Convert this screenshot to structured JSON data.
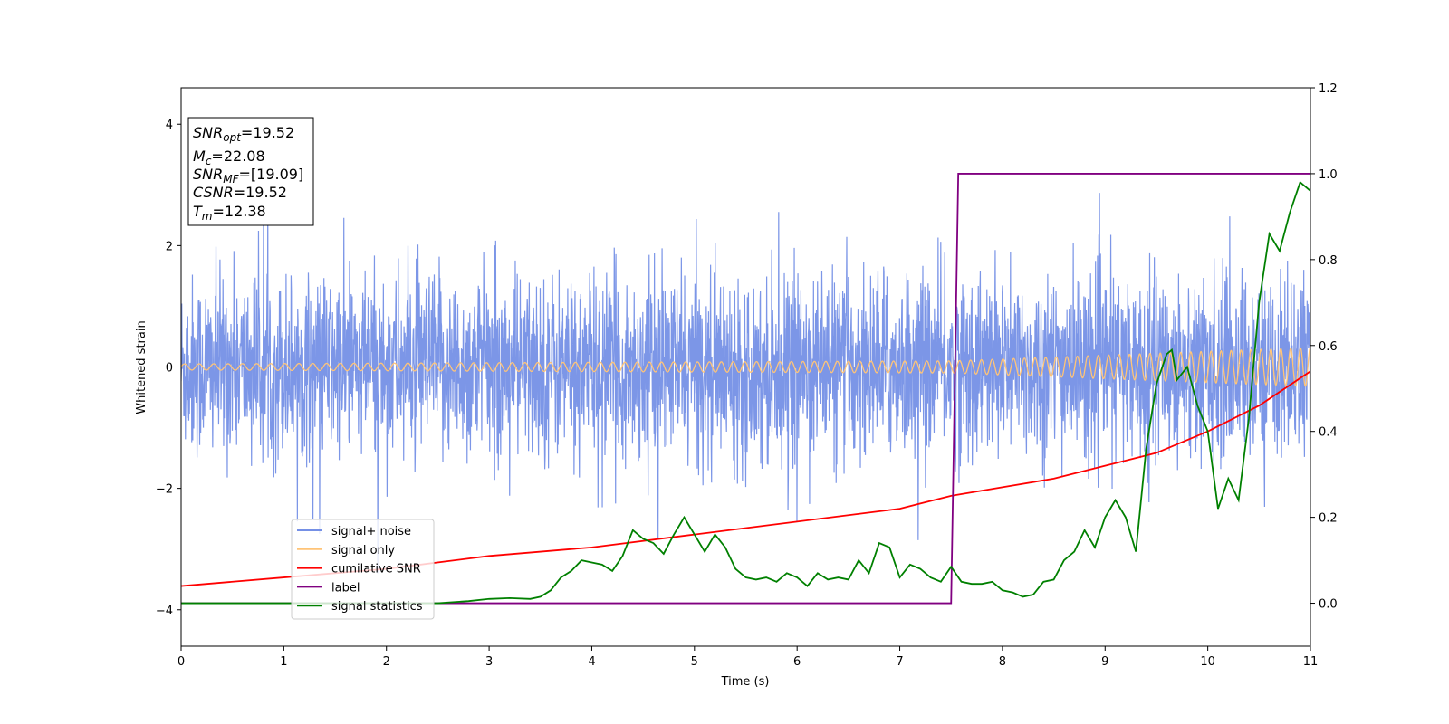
{
  "chart_data": {
    "type": "line",
    "xlabel": "Time (s)",
    "ylabel": "Whitened strain",
    "xlim": [
      0,
      11
    ],
    "ylim_left": [
      -4.6,
      4.6
    ],
    "ylim_right": [
      -0.1,
      1.2
    ],
    "x_ticks": [
      "0",
      "1",
      "2",
      "3",
      "4",
      "5",
      "6",
      "7",
      "8",
      "9",
      "10",
      "11"
    ],
    "y_left_ticks": [
      "4",
      "2",
      "0",
      "−2",
      "−4"
    ],
    "y_right_ticks": [
      "1.2",
      "1.0",
      "0.8",
      "0.6",
      "0.4",
      "0.2",
      "0.0"
    ],
    "y_left_tick_values": [
      4,
      2,
      0,
      -2,
      -4
    ],
    "y_right_tick_values": [
      1.2,
      1.0,
      0.8,
      0.6,
      0.4,
      0.2,
      0.0
    ],
    "annotation": {
      "lines": [
        {
          "sym": "SNR",
          "sub": "opt",
          "value": "=19.52"
        },
        {
          "sym": "M",
          "sub": "c",
          "value": "=22.08"
        },
        {
          "sym": "SNR",
          "sub": "MF",
          "value": "=[19.09]"
        },
        {
          "sym": "CSNR",
          "sub": "",
          "value": "=19.52"
        },
        {
          "sym": "T",
          "sub": "m",
          "value": "=12.38"
        }
      ]
    },
    "legend": {
      "position": "lower-left",
      "entries": [
        {
          "label": "signal+ noise",
          "color": "#7590e6"
        },
        {
          "label": "signal only",
          "color": "#ffc477"
        },
        {
          "label": "cumilative SNR",
          "color": "#ff0000"
        },
        {
          "label": "label",
          "color": "#800080"
        },
        {
          "label": "signal statistics",
          "color": "#008000"
        }
      ]
    },
    "series": [
      {
        "name": "signal+ noise",
        "axis": "left",
        "color": "#7590e6",
        "style": "noise band",
        "envelope_typical": 1.5,
        "envelope_extreme": [
          -4.1,
          3.3
        ]
      },
      {
        "name": "signal only",
        "axis": "left",
        "color": "#ffc477",
        "style": "chirp",
        "amplitude": [
          [
            0,
            0.05
          ],
          [
            7.5,
            0.1
          ],
          [
            11,
            0.32
          ]
        ]
      },
      {
        "name": "cumilative SNR",
        "axis": "right",
        "color": "#ff0000",
        "x": [
          0,
          1,
          2,
          3,
          4,
          5,
          6,
          7,
          7.5,
          8,
          8.5,
          9,
          9.5,
          10,
          10.5,
          11
        ],
        "y": [
          0.04,
          0.06,
          0.08,
          0.11,
          0.13,
          0.16,
          0.19,
          0.22,
          0.25,
          0.27,
          0.29,
          0.32,
          0.35,
          0.4,
          0.46,
          0.54
        ]
      },
      {
        "name": "label",
        "axis": "right",
        "color": "#800080",
        "x": [
          0,
          7.5,
          7.57,
          11
        ],
        "y": [
          0,
          0,
          1,
          1
        ]
      },
      {
        "name": "signal statistics",
        "axis": "right",
        "color": "#008000",
        "x": [
          0,
          0.5,
          1,
          1.5,
          2,
          2.5,
          2.8,
          3,
          3.2,
          3.4,
          3.5,
          3.6,
          3.7,
          3.8,
          3.9,
          4,
          4.1,
          4.2,
          4.3,
          4.4,
          4.5,
          4.6,
          4.7,
          4.8,
          4.9,
          5,
          5.1,
          5.2,
          5.3,
          5.4,
          5.5,
          5.6,
          5.7,
          5.8,
          5.9,
          6,
          6.1,
          6.2,
          6.3,
          6.4,
          6.5,
          6.6,
          6.7,
          6.8,
          6.9,
          7,
          7.1,
          7.2,
          7.3,
          7.4,
          7.5,
          7.6,
          7.7,
          7.8,
          7.9,
          8,
          8.1,
          8.2,
          8.3,
          8.4,
          8.5,
          8.6,
          8.7,
          8.8,
          8.9,
          9,
          9.1,
          9.2,
          9.3,
          9.4,
          9.5,
          9.6,
          9.65,
          9.7,
          9.8,
          9.9,
          10,
          10.1,
          10.2,
          10.3,
          10.4,
          10.5,
          10.6,
          10.7,
          10.8,
          10.9,
          11
        ],
        "y": [
          0.0,
          0.0,
          0.0,
          0.0,
          0.0,
          0.0,
          0.005,
          0.01,
          0.012,
          0.01,
          0.015,
          0.03,
          0.06,
          0.075,
          0.1,
          0.095,
          0.09,
          0.075,
          0.11,
          0.17,
          0.15,
          0.14,
          0.115,
          0.16,
          0.2,
          0.16,
          0.12,
          0.16,
          0.13,
          0.08,
          0.06,
          0.055,
          0.06,
          0.05,
          0.07,
          0.06,
          0.04,
          0.07,
          0.055,
          0.06,
          0.055,
          0.1,
          0.07,
          0.14,
          0.13,
          0.06,
          0.09,
          0.08,
          0.06,
          0.05,
          0.085,
          0.05,
          0.045,
          0.045,
          0.05,
          0.03,
          0.025,
          0.015,
          0.02,
          0.05,
          0.055,
          0.1,
          0.12,
          0.17,
          0.13,
          0.2,
          0.24,
          0.2,
          0.12,
          0.36,
          0.51,
          0.58,
          0.59,
          0.52,
          0.55,
          0.46,
          0.4,
          0.22,
          0.29,
          0.24,
          0.43,
          0.7,
          0.86,
          0.82,
          0.91,
          0.98,
          0.96
        ]
      }
    ]
  }
}
